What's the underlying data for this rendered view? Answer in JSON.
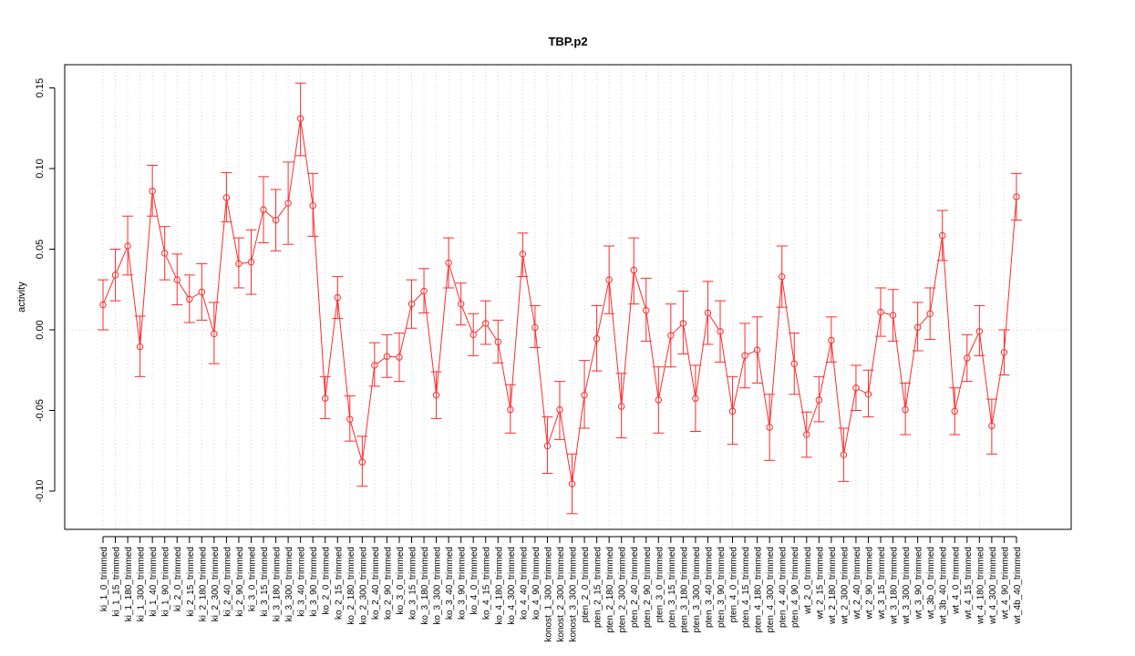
{
  "chart_data": {
    "type": "line",
    "title": "TBP.p2",
    "xlabel": "",
    "ylabel": "activity",
    "ylim": [
      -0.125,
      0.16
    ],
    "y_ticks": [
      "-0.10",
      "-0.05",
      "0.00",
      "0.05",
      "0.10",
      "0.15"
    ],
    "y_tick_values": [
      -0.1,
      -0.05,
      0.0,
      0.05,
      0.1,
      0.15
    ],
    "grid": true,
    "series_color": "#ff2a2a",
    "grid_color": "#d3d3d3",
    "categories": [
      "ki_1_0_trimmed",
      "ki_1_15_trimmed",
      "ki_1_180_trimmed",
      "ki_1_300_trimmed",
      "ki_1_40_trimmed",
      "ki_1_90_trimmed",
      "ki_2_0_trimmed",
      "ki_2_15_trimmed",
      "ki_2_180_trimmed",
      "ki_2_300_trimmed",
      "ki_2_40_trimmed",
      "ki_2_90_trimmed",
      "ki_3_0_trimmed",
      "ki_3_15_trimmed",
      "ki_3_180_trimmed",
      "ki_3_300_trimmed",
      "ki_3_40_trimmed",
      "ki_3_90_trimmed",
      "ko_2_0_trimmed",
      "ko_2_15_trimmed",
      "ko_2_180_trimmed",
      "ko_2_300_trimmed",
      "ko_2_40_trimmed",
      "ko_2_90_trimmed",
      "ko_3_0_trimmed",
      "ko_3_15_trimmed",
      "ko_3_180_trimmed",
      "ko_3_300_trimmed",
      "ko_3_40_trimmed",
      "ko_3_90_trimmed",
      "ko_4_0_trimmed",
      "ko_4_15_trimmed",
      "ko_4_180_trimmed",
      "ko_4_300_trimmed",
      "ko_4_40_trimmed",
      "ko_4_90_trimmed",
      "konost_1_300_trimmed",
      "konost_2_300_trimmed",
      "konost_3_300_trimmed",
      "pten_2_0_trimmed",
      "pten_2_15_trimmed",
      "pten_2_180_trimmed",
      "pten_2_300_trimmed",
      "pten_2_40_trimmed",
      "pten_2_90_trimmed",
      "pten_3_0_trimmed",
      "pten_3_15_trimmed",
      "pten_3_180_trimmed",
      "pten_3_300_trimmed",
      "pten_3_40_trimmed",
      "pten_3_90_trimmed",
      "pten_4_0_trimmed",
      "pten_4_15_trimmed",
      "pten_4_180_trimmed",
      "pten_4_300_trimmed",
      "pten_4_40_trimmed",
      "pten_4_90_trimmed",
      "wt_2_0_trimmed",
      "wt_2_15_trimmed",
      "wt_2_180_trimmed",
      "wt_2_300_trimmed",
      "wt_2_40_trimmed",
      "wt_2_90_trimmed",
      "wt_3_15_trimmed",
      "wt_3_180_trimmed",
      "wt_3_300_trimmed",
      "wt_3_90_trimmed",
      "wt_3b_0_trimmed",
      "wt_3b_40_trimmed",
      "wt_4_0_trimmed",
      "wt_4_15_trimmed",
      "wt_4_180_trimmed",
      "wt_4_300_trimmed",
      "wt_4_90_trimmed",
      "wt_4b_40_trimmed"
    ],
    "values": [
      0.0155,
      0.034,
      0.052,
      -0.0105,
      0.086,
      0.0475,
      0.031,
      0.019,
      0.0235,
      -0.0025,
      0.082,
      0.041,
      0.042,
      0.0745,
      0.068,
      0.0785,
      0.131,
      0.077,
      -0.0425,
      0.02,
      -0.0555,
      -0.082,
      -0.022,
      -0.0165,
      -0.017,
      0.016,
      0.024,
      -0.0405,
      0.0415,
      0.016,
      -0.003,
      0.004,
      -0.0075,
      -0.0495,
      0.047,
      0.0015,
      -0.072,
      -0.0495,
      -0.0955,
      -0.0405,
      -0.0055,
      0.031,
      -0.0475,
      0.037,
      0.012,
      -0.0435,
      -0.0035,
      0.004,
      -0.0425,
      0.0105,
      -0.001,
      -0.0505,
      -0.016,
      -0.0125,
      -0.0605,
      0.033,
      -0.021,
      -0.065,
      -0.0435,
      -0.0065,
      -0.0775,
      -0.036,
      -0.04,
      0.011,
      0.009,
      -0.0495,
      0.0015,
      0.01,
      0.0585,
      -0.0505,
      -0.0175,
      -0.001,
      -0.0595,
      -0.014,
      0.0825
    ],
    "upper": [
      0.031,
      0.05,
      0.0705,
      0.0085,
      0.102,
      0.064,
      0.047,
      0.034,
      0.041,
      0.017,
      0.0975,
      0.057,
      0.062,
      0.095,
      0.087,
      0.104,
      0.153,
      0.097,
      -0.029,
      0.033,
      -0.041,
      -0.066,
      -0.008,
      -0.003,
      -0.002,
      0.031,
      0.038,
      -0.026,
      0.057,
      0.029,
      0.01,
      0.018,
      0.006,
      -0.034,
      0.06,
      0.015,
      -0.054,
      -0.032,
      -0.077,
      -0.019,
      0.015,
      0.052,
      -0.027,
      0.057,
      0.032,
      -0.023,
      0.016,
      0.024,
      -0.022,
      0.03,
      0.018,
      -0.029,
      0.004,
      0.008,
      -0.04,
      0.052,
      -0.002,
      -0.051,
      -0.029,
      0.008,
      -0.061,
      -0.022,
      -0.025,
      0.026,
      0.025,
      -0.033,
      0.017,
      0.026,
      0.074,
      -0.036,
      -0.003,
      0.015,
      -0.043,
      0.0,
      0.097
    ],
    "lower": [
      0.0,
      0.018,
      0.034,
      -0.029,
      0.0705,
      0.031,
      0.0155,
      0.0045,
      0.006,
      -0.021,
      0.067,
      0.026,
      0.022,
      0.054,
      0.049,
      0.053,
      0.108,
      0.058,
      -0.055,
      0.007,
      -0.069,
      -0.097,
      -0.035,
      -0.0295,
      -0.032,
      0.001,
      0.0105,
      -0.055,
      0.026,
      0.003,
      -0.016,
      -0.009,
      -0.0205,
      -0.064,
      0.033,
      -0.011,
      -0.089,
      -0.068,
      -0.114,
      -0.061,
      -0.0255,
      0.01,
      -0.067,
      0.016,
      -0.007,
      -0.064,
      -0.023,
      -0.015,
      -0.063,
      -0.009,
      -0.02,
      -0.071,
      -0.036,
      -0.033,
      -0.081,
      0.014,
      -0.04,
      -0.079,
      -0.057,
      -0.02,
      -0.094,
      -0.05,
      -0.054,
      -0.004,
      -0.007,
      -0.065,
      -0.013,
      -0.006,
      0.043,
      -0.065,
      -0.032,
      -0.016,
      -0.077,
      -0.028,
      0.068
    ]
  }
}
